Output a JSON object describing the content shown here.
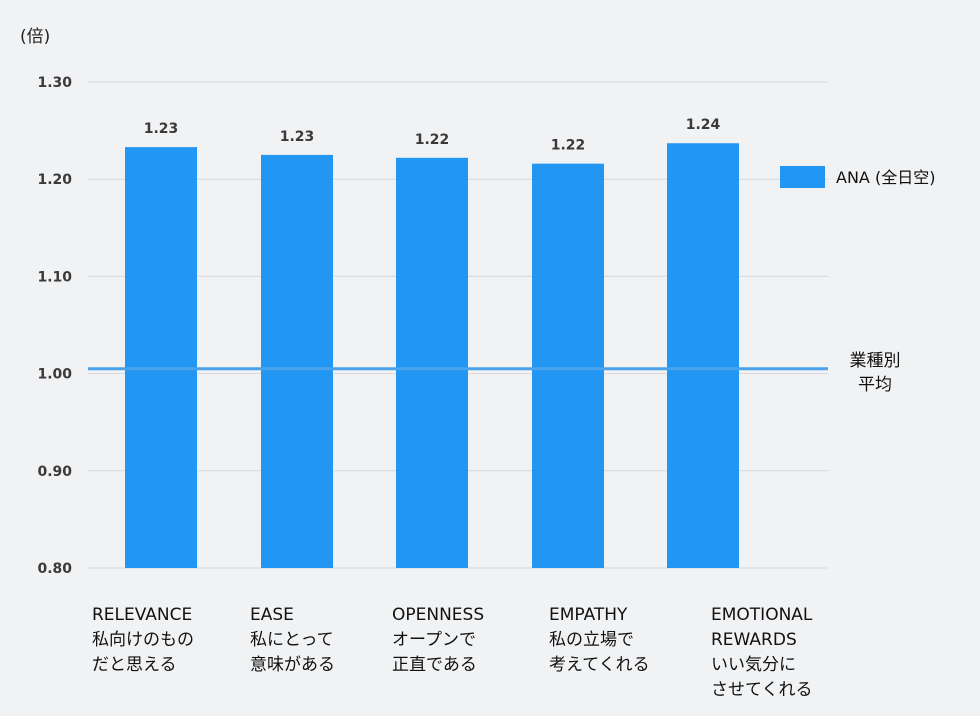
{
  "chart_data": {
    "type": "bar",
    "unit_label": "(倍)",
    "y_ticks": [
      "1.30",
      "1.20",
      "1.10",
      "1.00",
      "0.90",
      "0.80"
    ],
    "ylim": [
      0.8,
      1.3
    ],
    "categories": [
      [
        "RELEVANCE",
        "私向けのもの",
        "だと思える"
      ],
      [
        "EASE",
        "私にとって",
        "意味がある"
      ],
      [
        "OPENNESS",
        "オープンで",
        "正直である"
      ],
      [
        "EMPATHY",
        "私の立場で",
        "考えてくれる"
      ],
      [
        "EMOTIONAL",
        "REWARDS",
        "いい気分に",
        "させてくれる"
      ]
    ],
    "series": [
      {
        "name": "ANA (全日空)",
        "values": [
          1.233,
          1.225,
          1.222,
          1.216,
          1.237
        ],
        "data_labels": [
          "1.23",
          "1.23",
          "1.22",
          "1.22",
          "1.24"
        ]
      }
    ],
    "reference_line": {
      "value": 1.005,
      "label": [
        "業種別",
        "平均"
      ]
    },
    "grid": true,
    "legend_position": "right"
  },
  "colors": {
    "bar": "#2196f3",
    "reference_line": "#4aa3ea",
    "grid": "#d6d8dc"
  }
}
